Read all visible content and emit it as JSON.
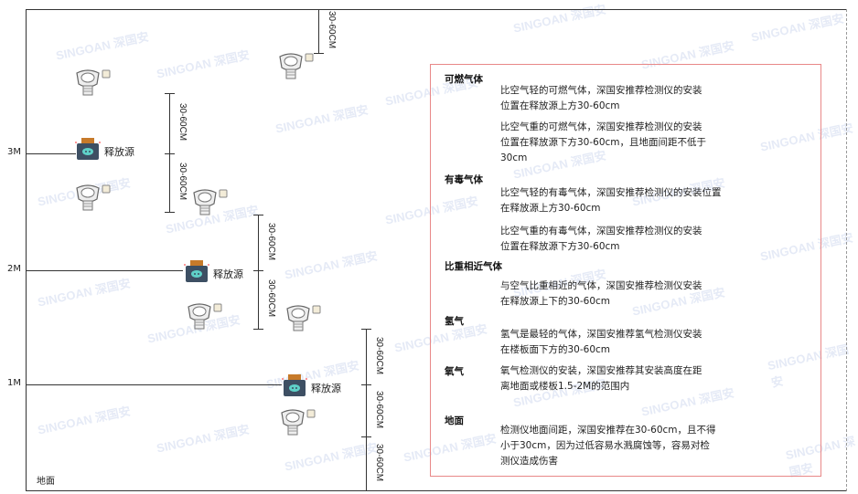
{
  "levels": {
    "l3": "3M",
    "l2": "2M",
    "l1": "1M",
    "ground": "地面"
  },
  "dimension_label": "30-60CM",
  "source_label": "释放源",
  "watermark": "SINGOAN 深国安",
  "info": {
    "combustible": {
      "title": "可燃气体",
      "light": "比空气轻的可燃气体，深国安推荐检测仪的安装\n位置在释放源上方30-60cm",
      "heavy": "比空气重的可燃气体，深国安推荐检测仪的安装\n位置在释放源下方30-60cm，且地面间距不低于\n30cm"
    },
    "toxic": {
      "title": "有毒气体",
      "light": "比空气轻的有毒气体，深国安推荐检测仪的安装位置\n在释放源上方30-60cm",
      "heavy": "比空气重的有毒气体，深国安推荐检测仪的安装\n位置在释放源下方30-60cm"
    },
    "similar": {
      "title": "比重相近气体",
      "text": "与空气比重相近的气体，深国安推荐检测仪安装\n在释放源上下的30-60cm"
    },
    "hydrogen": {
      "title": "氢气",
      "text": "氢气是最轻的气体，深国安推荐氢气检测仪安装\n在楼板面下方的30-60cm"
    },
    "oxygen": {
      "title": "氧气",
      "text": "氧气检测仪的安装，深国安推荐其安装高度在距\n离地面或楼板1.5-2M的范围内"
    },
    "ground": {
      "title": "地面",
      "text": "检测仪地面间距，深国安推荐在30-60cm，且不得\n小于30cm，因为过低容易水溅腐蚀等，容易对检\n测仪造成伤害"
    }
  },
  "colors": {
    "box_border": "#e88888",
    "source_body": "#3d4f63",
    "source_cap": "#c77a2a",
    "source_face": "#5fd1c8"
  }
}
